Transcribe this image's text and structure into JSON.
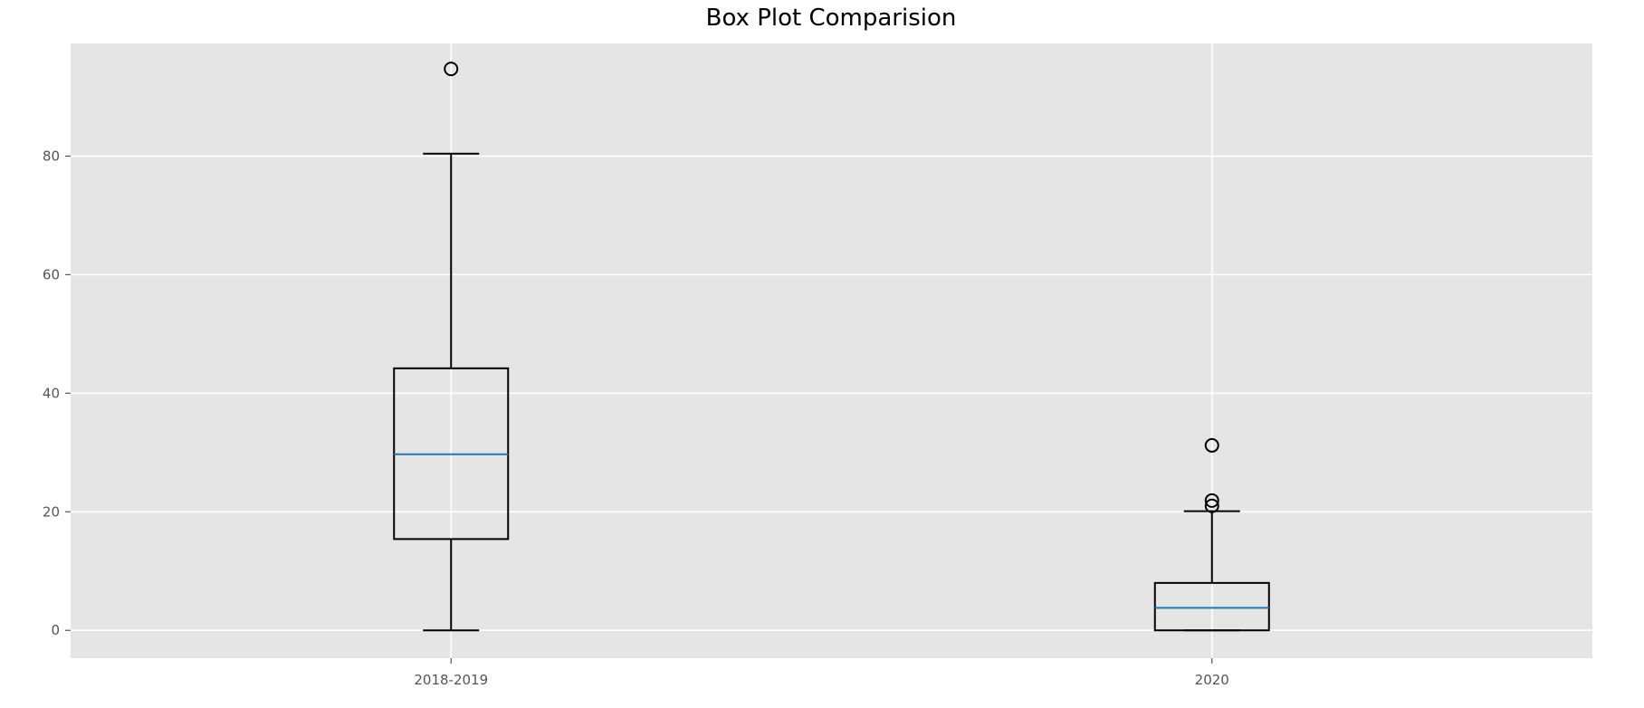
{
  "chart_data": {
    "type": "box",
    "title": "Box Plot Comparision",
    "xlabel": "",
    "ylabel": "",
    "ylim": [
      -4.7,
      99
    ],
    "yticks": [
      0,
      20,
      40,
      60,
      80
    ],
    "grid": true,
    "categories": [
      "2018-2019",
      "2020"
    ],
    "boxes": [
      {
        "category": "2018-2019",
        "whisker_low": 0,
        "q1": 15.4,
        "median": 29.7,
        "q3": 44.2,
        "whisker_high": 80.4,
        "outliers": [
          94.7
        ]
      },
      {
        "category": "2020",
        "whisker_low": 0,
        "q1": 0,
        "median": 3.8,
        "q3": 8.0,
        "whisker_high": 20.1,
        "outliers": [
          21.0,
          21.9,
          31.2
        ]
      }
    ],
    "colors": {
      "plot_bg": "#e5e5e5",
      "grid": "#ffffff",
      "box": "#000000",
      "median": "#1f77b4"
    }
  }
}
